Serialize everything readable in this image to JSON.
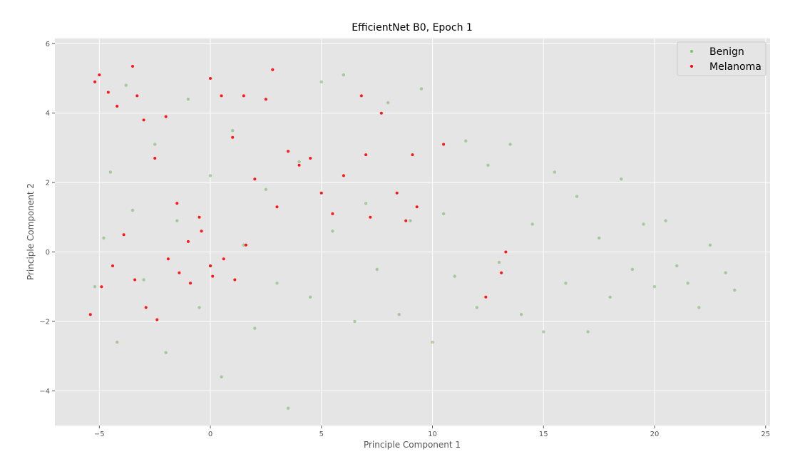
{
  "chart_data": {
    "type": "scatter",
    "title": "EfficientNet B0, Epoch 1",
    "xlabel": "Principle Component 1",
    "ylabel": "Principle Component 2",
    "xlim": [
      -7,
      25.2
    ],
    "ylim": [
      -5,
      6.15
    ],
    "xticks": [
      -5,
      0,
      5,
      10,
      15,
      20,
      25
    ],
    "yticks": [
      -4,
      -2,
      0,
      2,
      4,
      6
    ],
    "xtick_labels": [
      "−5",
      "0",
      "5",
      "10",
      "15",
      "20",
      "25"
    ],
    "ytick_labels": [
      "−4",
      "−2",
      "0",
      "2",
      "4",
      "6"
    ],
    "grid": true,
    "style": "ggplot",
    "legend_position": "upper-right",
    "background_color": "#e5e5e5",
    "grid_color": "#ffffff",
    "series": [
      {
        "name": "Benign",
        "color": "#1f8f00",
        "opacity": 0.32,
        "approx_count": 26000,
        "points": [
          [
            -5.2,
            -1.0
          ],
          [
            -4.8,
            0.4
          ],
          [
            -4.5,
            2.3
          ],
          [
            -4.2,
            -2.6
          ],
          [
            -3.8,
            4.8
          ],
          [
            -3.5,
            1.2
          ],
          [
            -3.0,
            -0.8
          ],
          [
            -2.5,
            3.1
          ],
          [
            -2.0,
            -2.9
          ],
          [
            -1.5,
            0.9
          ],
          [
            -1.0,
            4.4
          ],
          [
            -0.5,
            -1.6
          ],
          [
            0.0,
            2.2
          ],
          [
            0.0,
            -0.4
          ],
          [
            0.5,
            -3.6
          ],
          [
            1.0,
            3.5
          ],
          [
            1.5,
            0.2
          ],
          [
            2.0,
            -2.2
          ],
          [
            2.5,
            1.8
          ],
          [
            3.0,
            -0.9
          ],
          [
            3.5,
            -4.5
          ],
          [
            4.0,
            2.6
          ],
          [
            4.5,
            -1.3
          ],
          [
            5.0,
            4.9
          ],
          [
            5.5,
            0.6
          ],
          [
            6.0,
            5.1
          ],
          [
            6.5,
            -2.0
          ],
          [
            7.0,
            1.4
          ],
          [
            7.5,
            -0.5
          ],
          [
            8.0,
            4.3
          ],
          [
            8.5,
            -1.8
          ],
          [
            9.0,
            0.9
          ],
          [
            9.5,
            4.7
          ],
          [
            10.0,
            -2.6
          ],
          [
            10.5,
            1.1
          ],
          [
            11.0,
            -0.7
          ],
          [
            11.5,
            3.2
          ],
          [
            12.0,
            -1.6
          ],
          [
            12.5,
            2.5
          ],
          [
            13.0,
            -0.3
          ],
          [
            13.5,
            3.1
          ],
          [
            14.0,
            -1.8
          ],
          [
            14.5,
            0.8
          ],
          [
            15.0,
            -2.3
          ],
          [
            15.5,
            2.3
          ],
          [
            16.0,
            -0.9
          ],
          [
            16.5,
            1.6
          ],
          [
            17.0,
            -2.3
          ],
          [
            17.5,
            0.4
          ],
          [
            18.0,
            -1.3
          ],
          [
            18.5,
            2.1
          ],
          [
            19.0,
            -0.5
          ],
          [
            19.5,
            0.8
          ],
          [
            20.0,
            -1.0
          ],
          [
            20.5,
            0.9
          ],
          [
            21.0,
            -0.4
          ],
          [
            21.5,
            -0.9
          ],
          [
            22.0,
            -1.6
          ],
          [
            22.5,
            0.2
          ],
          [
            23.2,
            -0.6
          ],
          [
            23.6,
            -1.1
          ]
        ]
      },
      {
        "name": "Melanoma",
        "color": "#ff0000",
        "opacity": 0.9,
        "approx_count": 580,
        "points": [
          [
            -5.2,
            4.9
          ],
          [
            -5.0,
            5.1
          ],
          [
            -4.6,
            4.6
          ],
          [
            -4.2,
            4.2
          ],
          [
            -3.5,
            5.35
          ],
          [
            -3.3,
            4.5
          ],
          [
            -3.0,
            3.8
          ],
          [
            -2.5,
            2.7
          ],
          [
            -2.0,
            3.9
          ],
          [
            -1.5,
            1.4
          ],
          [
            -1.0,
            0.3
          ],
          [
            -0.5,
            1.0
          ],
          [
            0.0,
            5.0
          ],
          [
            0.0,
            -0.4
          ],
          [
            0.5,
            4.5
          ],
          [
            1.0,
            3.3
          ],
          [
            1.5,
            4.5
          ],
          [
            2.0,
            2.1
          ],
          [
            2.5,
            4.4
          ],
          [
            2.8,
            5.25
          ],
          [
            3.0,
            1.3
          ],
          [
            3.5,
            2.9
          ],
          [
            4.0,
            2.5
          ],
          [
            4.5,
            2.7
          ],
          [
            5.0,
            1.7
          ],
          [
            5.5,
            1.1
          ],
          [
            6.0,
            2.2
          ],
          [
            6.8,
            4.5
          ],
          [
            7.0,
            2.8
          ],
          [
            7.2,
            1.0
          ],
          [
            7.7,
            4.0
          ],
          [
            8.4,
            1.7
          ],
          [
            8.8,
            0.9
          ],
          [
            9.1,
            2.8
          ],
          [
            9.3,
            1.3
          ],
          [
            10.5,
            3.1
          ],
          [
            12.4,
            -1.3
          ],
          [
            13.1,
            -0.6
          ],
          [
            13.3,
            0.0
          ],
          [
            -5.4,
            -1.8
          ],
          [
            -4.9,
            -1.0
          ],
          [
            -4.4,
            -0.4
          ],
          [
            -3.9,
            0.5
          ],
          [
            -3.4,
            -0.8
          ],
          [
            -2.9,
            -1.6
          ],
          [
            -2.4,
            -1.95
          ],
          [
            -1.9,
            -0.2
          ],
          [
            -1.4,
            -0.6
          ],
          [
            -0.9,
            -0.9
          ],
          [
            -0.4,
            0.6
          ],
          [
            0.1,
            -0.7
          ],
          [
            0.6,
            -0.2
          ],
          [
            1.1,
            -0.8
          ],
          [
            1.6,
            0.2
          ]
        ]
      }
    ]
  }
}
